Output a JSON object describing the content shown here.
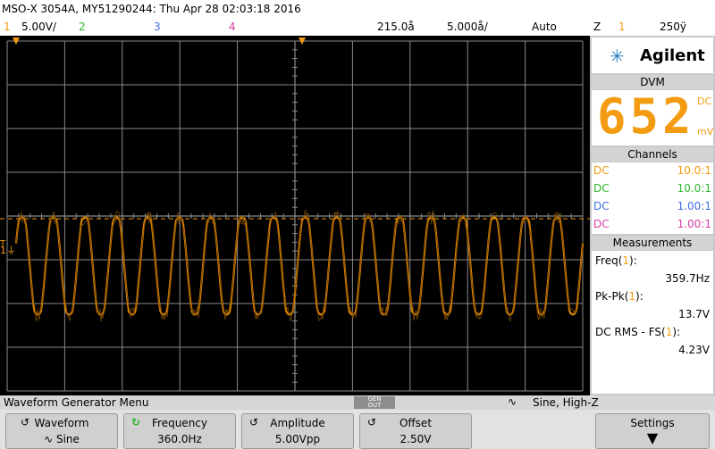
{
  "header": {
    "title": "MSO-X 3054A, MY51290244: Thu Apr 28 02:03:18 2016",
    "ch1_num": "1",
    "ch1_scale": "5.00V/",
    "ch2_num": "2",
    "ch3_num": "3",
    "ch4_num": "4",
    "delay": "215.0å",
    "timebase": "5.000å/",
    "trigger_mode": "Auto",
    "trigger_icon": "Ζ",
    "trigger_source": "1",
    "trigger_level": "250ÿ"
  },
  "screen": {
    "ground_marker": "1",
    "trigger_marker": "T",
    "waveform": {
      "frequency_hz": 359.7,
      "vpp": 13.7,
      "cycles_visible": 18
    }
  },
  "brand": {
    "name": "Agilent",
    "logo_icon": "agilent-spark-icon"
  },
  "dvm": {
    "header": "DVM",
    "value": "652",
    "unit_top": "DC",
    "unit_bottom": "mV"
  },
  "channels": {
    "header": "Channels",
    "rows": [
      {
        "coupling": "DC",
        "ratio": "10.0:1",
        "color": "#f39c12"
      },
      {
        "coupling": "DC",
        "ratio": "10.0:1",
        "color": "#2eb82e"
      },
      {
        "coupling": "DC",
        "ratio": "1.00:1",
        "color": "#3f6ee0"
      },
      {
        "coupling": "DC",
        "ratio": "1.00:1",
        "color": "#d63fa5"
      }
    ]
  },
  "measurements": {
    "header": "Measurements",
    "items": [
      {
        "label_pre": "Freq(",
        "label_ch": "1",
        "label_post": "):",
        "value": "359.7Hz"
      },
      {
        "label_pre": "Pk-Pk(",
        "label_ch": "1",
        "label_post": "):",
        "value": "13.7V"
      },
      {
        "label_pre": "DC RMS - FS(",
        "label_ch": "1",
        "label_post": "):",
        "value": "4.23V"
      }
    ]
  },
  "menu": {
    "title": "Waveform Generator Menu",
    "gen_out_1": "GEN",
    "gen_out_2": "OUT",
    "status": "Sine, High-Z"
  },
  "softkeys": {
    "waveform_label": "Waveform",
    "waveform_value": "Sine",
    "frequency_label": "Frequency",
    "frequency_value": "360.0Hz",
    "amplitude_label": "Amplitude",
    "amplitude_value": "5.00Vpp",
    "offset_label": "Offset",
    "offset_value": "2.50V",
    "settings_label": "Settings"
  },
  "colors": {
    "ch1": "#f39c12",
    "ch2": "#2eb82e",
    "ch3": "#3f6ee0",
    "ch4": "#d63fa5",
    "grid": "#8a8a8a",
    "trace": "#e08a00"
  }
}
